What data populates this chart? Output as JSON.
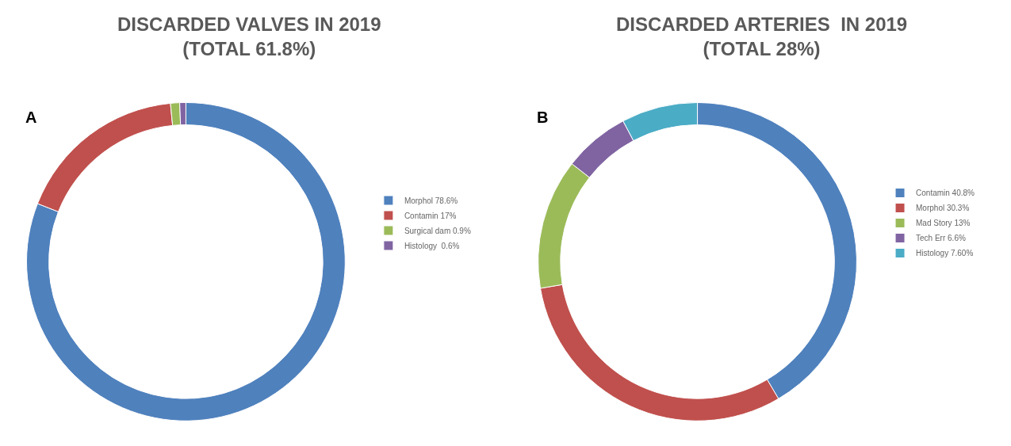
{
  "chart_data": [
    {
      "type": "donut",
      "title": "DISCARDED VALVES IN 2019\n(TOTAL 61.8%)",
      "annotations": [
        "A"
      ],
      "categories": [
        "Morphol",
        "Contamin",
        "Surgical dam",
        "Histology"
      ],
      "values": [
        78.6,
        17,
        0.9,
        0.6
      ],
      "value_labels": [
        "78.6%",
        "17%",
        "0.9%",
        " 0.6%"
      ],
      "colors": [
        "#4f81bd",
        "#c0504d",
        "#9bbb59",
        "#8064a2"
      ],
      "legend": "right"
    },
    {
      "type": "donut",
      "title": "DISCARDED ARTERIES  IN 2019\n(TOTAL 28%)",
      "annotations": [
        "B"
      ],
      "categories": [
        "Contamin",
        "Morphol",
        "Mad Story",
        "Tech Err",
        "Histology"
      ],
      "values": [
        40.8,
        30.3,
        13,
        6.6,
        7.6
      ],
      "value_labels": [
        "40.8%",
        "30.3%",
        "13%",
        "6.6%",
        "7.60%"
      ],
      "colors": [
        "#4f81bd",
        "#c0504d",
        "#9bbb59",
        "#8064a2",
        "#4bacc6"
      ],
      "legend": "right"
    }
  ]
}
